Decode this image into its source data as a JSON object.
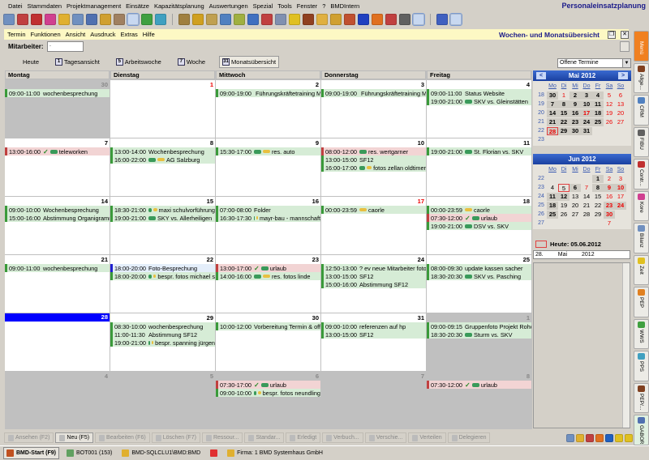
{
  "app_title": "Personaleinsatzplanung",
  "menu": [
    "Datei",
    "Stammdaten",
    "Projektmanagement",
    "Einsätze",
    "Kapazitätsplanung",
    "Auswertungen",
    "Spezial",
    "Tools",
    "Fenster",
    "?",
    "BMDIntern"
  ],
  "toolbar_icons": [
    {
      "name": "refresh-icon",
      "color": "#7090c0"
    },
    {
      "name": "text-icon",
      "color": "#c04040"
    },
    {
      "name": "building-icon",
      "color": "#c03030"
    },
    {
      "name": "flask-icon",
      "color": "#d04090"
    },
    {
      "name": "chart-icon",
      "color": "#e0b030"
    },
    {
      "name": "report-icon",
      "color": "#7090c0"
    },
    {
      "name": "check-icon",
      "color": "#5070b0"
    },
    {
      "name": "coins-icon",
      "color": "#d0a030"
    },
    {
      "name": "search-icon",
      "color": "#a08060"
    },
    {
      "name": "users-icon",
      "color": "#e08020",
      "selected": true
    },
    {
      "name": "recycle-icon",
      "color": "#40a040"
    },
    {
      "name": "print-icon",
      "color": "#40a0c0"
    },
    {
      "sep": true
    },
    {
      "name": "people-icon",
      "color": "#a08040"
    },
    {
      "name": "people-icon",
      "color": "#d0a020"
    },
    {
      "name": "people-icon",
      "color": "#c0a050"
    },
    {
      "name": "calendar-icon",
      "color": "#5080c0"
    },
    {
      "name": "money-icon",
      "color": "#a0b040"
    },
    {
      "name": "monitor-icon",
      "color": "#4070c0"
    },
    {
      "name": "clock-icon",
      "color": "#c04040"
    },
    {
      "name": "database-icon",
      "color": "#8090b0"
    },
    {
      "name": "note-icon",
      "color": "#e0c020"
    },
    {
      "name": "person-icon",
      "color": "#904020"
    },
    {
      "name": "document-icon",
      "color": "#e0b040"
    },
    {
      "name": "edit-icon",
      "color": "#d0a030"
    },
    {
      "name": "book-icon",
      "color": "#c05030"
    },
    {
      "name": "paw-icon",
      "color": "#2040c0"
    },
    {
      "name": "group-icon",
      "color": "#e07020"
    },
    {
      "name": "calendar7-icon",
      "color": "#c04040"
    },
    {
      "name": "text-t-icon",
      "color": "#606060"
    },
    {
      "name": "transfer-icon",
      "color": "#4070c0",
      "selected": true
    },
    {
      "sep": true
    },
    {
      "name": "window-icon",
      "color": "#4060c0"
    },
    {
      "name": "calendar31-icon",
      "color": "#4060a0",
      "selected": true
    }
  ],
  "submenu": [
    "Termin",
    "Funktionen",
    "Ansicht",
    "Ausdruck",
    "Extras",
    "Hilfe"
  ],
  "window_title": "Wochen- und Monatsübersicht",
  "employee_label": "Mitarbeiter:",
  "employee_value": ".",
  "views": [
    {
      "label": "Heute",
      "icon": ""
    },
    {
      "label": "Tagesansicht",
      "icon": "1"
    },
    {
      "label": "Arbeitswoche",
      "icon": "5"
    },
    {
      "label": "Woche",
      "icon": "7"
    },
    {
      "label": "Monatsübersicht",
      "icon": "31",
      "active": true
    }
  ],
  "filter": "Offene Termine",
  "weekdays": [
    "Montag",
    "Dienstag",
    "Mittwoch",
    "Donnerstag",
    "Freitag"
  ],
  "weeks": [
    [
      {
        "day": "30",
        "gray": true,
        "events": [
          {
            "time": "09:00-11:00",
            "text": "wochenbesprechung"
          }
        ]
      },
      {
        "day": "1",
        "red": true,
        "events": []
      },
      {
        "day": "2",
        "events": [
          {
            "time": "09:00-19:00",
            "icons": [
              "car"
            ],
            "text": "Führungskräftetraining M"
          }
        ]
      },
      {
        "day": "3",
        "events": [
          {
            "time": "09:00-19:00",
            "icons": [
              "car"
            ],
            "text": "Führungskräftetraining M"
          }
        ]
      },
      {
        "day": "4",
        "events": [
          {
            "time": "09:00-11:00",
            "text": "Status Website"
          },
          {
            "time": "19:00-21:00",
            "icons": [
              "car"
            ],
            "text": "SKV vs. Gleinstätten"
          }
        ]
      }
    ],
    [
      {
        "day": "7",
        "events": [
          {
            "time": "13:00-16:00",
            "icons": [
              "check",
              "car"
            ],
            "text": "teleworken",
            "color": "pink"
          }
        ]
      },
      {
        "day": "8",
        "events": [
          {
            "time": "13:00-14:00",
            "text": "Wochenbesprechung"
          },
          {
            "time": "16:00-22:00",
            "icons": [
              "car",
              "key"
            ],
            "text": "AG Salzburg"
          }
        ]
      },
      {
        "day": "9",
        "events": [
          {
            "time": "15:30-17:00",
            "icons": [
              "car",
              "key"
            ],
            "text": "res. auto"
          }
        ]
      },
      {
        "day": "10",
        "events": [
          {
            "time": "08:00-12:00",
            "icons": [
              "car"
            ],
            "text": "res. wertgarner",
            "color": "pink"
          },
          {
            "time": "13:00-15:00",
            "text": "SF12"
          },
          {
            "time": "16:00-17:00",
            "icons": [
              "car",
              "key"
            ],
            "text": "fotos zellan oldtimer"
          }
        ]
      },
      {
        "day": "11",
        "events": [
          {
            "time": "19:00-21:00",
            "icons": [
              "car"
            ],
            "text": "St. Florian vs. SKV"
          }
        ]
      }
    ],
    [
      {
        "day": "14",
        "events": [
          {
            "time": "09:00-10:00",
            "text": "Wochenbesprechung"
          },
          {
            "time": "15:00-16:00",
            "text": "Abstimmung Organigramm/Al"
          }
        ]
      },
      {
        "day": "15",
        "events": [
          {
            "time": "18:30-21:00",
            "icons": [
              "car",
              "key"
            ],
            "text": "maxi schulvorführung"
          },
          {
            "time": "19:00-21:00",
            "icons": [
              "car"
            ],
            "text": "SKY vs. Allerheiligen"
          }
        ]
      },
      {
        "day": "16",
        "events": [
          {
            "time": "07:00-08:00",
            "text": "Folder"
          },
          {
            "time": "16:30-17:30",
            "icons": [
              "car",
              "key"
            ],
            "text": "mayr-bau - mannschaft"
          }
        ]
      },
      {
        "day": "17",
        "red": true,
        "events": [
          {
            "time": "00:00-23:59",
            "icons": [
              "key"
            ],
            "text": "caorle"
          }
        ]
      },
      {
        "day": "18",
        "events": [
          {
            "time": "00:00-23:59",
            "icons": [
              "key"
            ],
            "text": "caorle"
          },
          {
            "time": "07:30-12:00",
            "icons": [
              "check",
              "car"
            ],
            "text": "urlaub",
            "color": "pink"
          },
          {
            "time": "19:00-21:00",
            "icons": [
              "car"
            ],
            "text": "DSV vs. SKV"
          }
        ]
      }
    ],
    [
      {
        "day": "21",
        "events": [
          {
            "time": "09:00-11:00",
            "text": "wochenbesprechung"
          }
        ]
      },
      {
        "day": "22",
        "events": [
          {
            "time": "18:00-20:00",
            "text": "Foto-Besprechung",
            "color": "blue"
          },
          {
            "time": "18:00-20:00",
            "icons": [
              "car",
              "key"
            ],
            "text": "bespr. fotos michael s"
          }
        ]
      },
      {
        "day": "23",
        "events": [
          {
            "time": "13:00-17:00",
            "icons": [
              "check",
              "car"
            ],
            "text": "urlaub",
            "color": "pink"
          },
          {
            "time": "14:00-16:00",
            "icons": [
              "car",
              "key"
            ],
            "text": "res. fotos linde"
          }
        ]
      },
      {
        "day": "24",
        "events": [
          {
            "time": "12:50-13:00",
            "text": "? ev neue Mitarbeiter fotogra"
          },
          {
            "time": "13:00-15:00",
            "text": "SF12"
          },
          {
            "time": "15:00-16:00",
            "text": "Abstimmung SF12"
          }
        ]
      },
      {
        "day": "25",
        "events": [
          {
            "time": "08:00-09:30",
            "text": "update kassen sacher"
          },
          {
            "time": "18:30-20:30",
            "icons": [
              "car"
            ],
            "text": "SKV vs. Pasching"
          }
        ]
      }
    ],
    [
      {
        "day": "28",
        "today": true,
        "events": []
      },
      {
        "day": "29",
        "events": [
          {
            "time": "08:30-10:00",
            "text": "wochenbesprechung"
          },
          {
            "time": "11:00-11:30",
            "text": "Abstimmung SF12"
          },
          {
            "time": "19:00-21:00",
            "icons": [
              "car",
              "key"
            ],
            "text": "bespr. spanning jürgen"
          }
        ]
      },
      {
        "day": "30",
        "events": [
          {
            "time": "10:00-12:00",
            "text": "Vorbereitung Termin & offene"
          }
        ]
      },
      {
        "day": "31",
        "events": [
          {
            "time": "09:00-10:00",
            "text": "referenzen auf hp"
          },
          {
            "time": "13:00-15:00",
            "text": "SF12"
          }
        ]
      },
      {
        "day": "1",
        "gray": true,
        "events": [
          {
            "time": "09:00-09:15",
            "text": "Gruppenfoto Projekt Rohol"
          },
          {
            "time": "18:30-20:30",
            "icons": [
              "car"
            ],
            "text": "Sturm vs. SKV"
          }
        ]
      }
    ],
    [
      {
        "day": "4",
        "gray": true,
        "events": []
      },
      {
        "day": "5",
        "gray": true,
        "events": []
      },
      {
        "day": "6",
        "gray": true,
        "events": [
          {
            "time": "07:30-17:00",
            "icons": [
              "check",
              "car"
            ],
            "text": "urlaub",
            "color": "pink"
          },
          {
            "time": "09:00-10:00",
            "icons": [
              "car",
              "key"
            ],
            "text": "bespr. fotos neundling"
          }
        ]
      },
      {
        "day": "7",
        "gray": true,
        "events": []
      },
      {
        "day": "8",
        "gray": true,
        "events": [
          {
            "time": "07:30-12:00",
            "icons": [
              "check",
              "car"
            ],
            "text": "urlaub",
            "color": "pink"
          }
        ]
      }
    ]
  ],
  "mini_calendars": [
    {
      "title": "Mai 2012",
      "nav": true,
      "weeks": [
        "18",
        "19",
        "20",
        "21",
        "22",
        "23"
      ],
      "rows": [
        [
          "30",
          "1",
          "2",
          "3",
          "4",
          "5",
          "6"
        ],
        [
          "7",
          "8",
          "9",
          "10",
          "11",
          "12",
          "13"
        ],
        [
          "14",
          "15",
          "16",
          "17",
          "18",
          "19",
          "20"
        ],
        [
          "21",
          "22",
          "23",
          "24",
          "25",
          "26",
          "27"
        ],
        [
          "28",
          "29",
          "30",
          "31",
          "",
          "",
          ""
        ],
        [
          "",
          "",
          "",
          "",
          "",
          "",
          ""
        ]
      ],
      "red": [
        "1",
        "17",
        "28"
      ],
      "bold": [
        "30",
        "2",
        "3",
        "4",
        "7",
        "8",
        "9",
        "10",
        "11",
        "14",
        "15",
        "16",
        "17",
        "18",
        "21",
        "22",
        "23",
        "24",
        "25",
        "28",
        "29",
        "31"
      ],
      "shaded": [
        "2",
        "3",
        "4",
        "7",
        "8",
        "9",
        "10",
        "11"
      ],
      "selected": [
        "28"
      ]
    },
    {
      "title": "Jun 2012",
      "nav": false,
      "weeks": [
        "22",
        "23",
        "24",
        "25",
        "26",
        "27"
      ],
      "rows": [
        [
          "",
          "",
          "",
          "",
          "1",
          "2",
          "3"
        ],
        [
          "4",
          "5",
          "6",
          "7",
          "8",
          "9",
          "10"
        ],
        [
          "11",
          "12",
          "13",
          "14",
          "15",
          "16",
          "17"
        ],
        [
          "18",
          "19",
          "20",
          "21",
          "22",
          "23",
          "24"
        ],
        [
          "25",
          "26",
          "27",
          "28",
          "29",
          "30",
          ""
        ],
        [
          "",
          "",
          "",
          "",
          "",
          "7",
          ""
        ]
      ],
      "red": [
        "7"
      ],
      "bold": [
        "1",
        "6",
        "8",
        "9",
        "10",
        "11",
        "12",
        "18",
        "23",
        "24",
        "25",
        "30"
      ],
      "shaded": [
        "1",
        "6",
        "8",
        "10",
        "12",
        "24"
      ],
      "selected": [
        "5"
      ]
    }
  ],
  "weekday_short": [
    "Mo",
    "Di",
    "Mi",
    "Do",
    "Fr",
    "Sa",
    "So"
  ],
  "today_label": "Heute: 05.06.2012",
  "date_field": {
    "day": "28.",
    "month": "Mai",
    "year": "2012"
  },
  "side_tabs": [
    {
      "label": "Menü",
      "color": "#f08020"
    },
    {
      "label": "Allge...",
      "color": "#804020"
    },
    {
      "label": "CRM",
      "color": "#5080c0"
    },
    {
      "label": "FIBU",
      "color": "#606060"
    },
    {
      "label": "Contr...",
      "color": "#c03030"
    },
    {
      "label": "Kore",
      "color": "#d04090"
    },
    {
      "label": "Bilanz",
      "color": "#7090c0"
    },
    {
      "label": "Zeit",
      "color": "#e0c020"
    },
    {
      "label": "PEP",
      "color": "#e08020"
    },
    {
      "label": "WWS",
      "color": "#40a040"
    },
    {
      "label": "PPS",
      "color": "#40a0c0"
    },
    {
      "label": "PEP/...",
      "color": "#804020"
    },
    {
      "label": "GABOR",
      "color": "#5070b0"
    }
  ],
  "actions": [
    {
      "label": "Ansehen (F2)"
    },
    {
      "label": "Neu (F5)",
      "enabled": true
    },
    {
      "label": "Bearbeiten (F6)"
    },
    {
      "label": "Löschen (F7)"
    },
    {
      "label": "Ressour..."
    },
    {
      "label": "Standar..."
    },
    {
      "label": "Erledigt"
    },
    {
      "label": "Verbuch..."
    },
    {
      "label": "Verschie..."
    },
    {
      "label": "Verteilen"
    },
    {
      "label": "Delegieren"
    }
  ],
  "action_icons": [
    {
      "name": "resource-icon",
      "color": "#7090c0"
    },
    {
      "name": "arrows-icon",
      "color": "#e0b030"
    },
    {
      "name": "checklist-icon",
      "color": "#c04040"
    },
    {
      "name": "refresh-icon",
      "color": "#e07020"
    },
    {
      "name": "person-icon",
      "color": "#2060c0"
    },
    {
      "name": "minus-icon",
      "color": "#e0c020"
    },
    {
      "name": "plus-icon",
      "color": "#e0c020"
    }
  ],
  "taskbar": [
    {
      "label": "BMD-Start (F9)",
      "active": true,
      "color": "#c05020"
    },
    {
      "label": "BOT001 (153)",
      "color": "#60a060"
    },
    {
      "label": "BMD-SQLCLU1\\BMD:BMD",
      "color": "#e0b030"
    },
    {
      "label": "",
      "color": "#e03030"
    },
    {
      "label": "Firma: 1 BMD Systemhaus GmbH",
      "color": "#e0b030"
    }
  ]
}
